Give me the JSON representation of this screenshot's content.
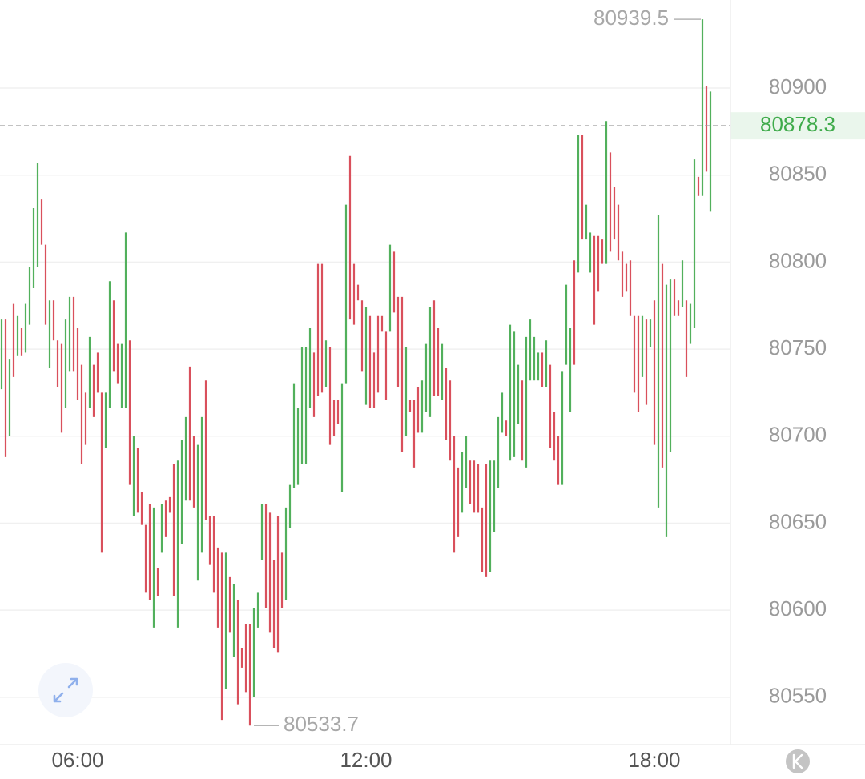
{
  "chart_data": {
    "type": "ohlc",
    "x": [
      265,
      270,
      275,
      280,
      285,
      290,
      295,
      300,
      305,
      310,
      315,
      320,
      325,
      330,
      335,
      340,
      345,
      350,
      355,
      360,
      365,
      370,
      375,
      380,
      385,
      390,
      395,
      400,
      405,
      410,
      415,
      420,
      425,
      430,
      435,
      440,
      445,
      450,
      455,
      460,
      465,
      470,
      475,
      480,
      485,
      490,
      495,
      500,
      505,
      510,
      515,
      520,
      525,
      530,
      535,
      540,
      545,
      550,
      555,
      560,
      565,
      570,
      575,
      580,
      585,
      590,
      595,
      600,
      605,
      610,
      615,
      620,
      625,
      630,
      635,
      640,
      645,
      650,
      655,
      660,
      665,
      670,
      675,
      680,
      685,
      690,
      695,
      700,
      705,
      710,
      715,
      720,
      725,
      730,
      735,
      740,
      745,
      750,
      755,
      760,
      765,
      770,
      775,
      780,
      785,
      790,
      795,
      800,
      805,
      810,
      815,
      820,
      825,
      830,
      835,
      840,
      845,
      850,
      855,
      860,
      865,
      870,
      875,
      880,
      885,
      890,
      895,
      900,
      905,
      910,
      915,
      920,
      925,
      930,
      935,
      940,
      945,
      950,
      955,
      960,
      965,
      970,
      975,
      980,
      985,
      990,
      995,
      1000,
      1005,
      1010,
      1015,
      1020,
      1025,
      1030,
      1035,
      1040,
      1045,
      1050,
      1055,
      1060,
      1065,
      1070,
      1075,
      1080,
      1085,
      1090,
      1095,
      1100,
      1105,
      1110,
      1115,
      1120,
      1125,
      1130,
      1135,
      1140,
      1145,
      1150
    ],
    "high": [
      80767,
      80767,
      80744,
      80776,
      80769,
      80762,
      80776,
      80797,
      80831,
      80857,
      80836,
      80810,
      80778,
      80778,
      80755,
      80753,
      80767,
      80780,
      80780,
      80762,
      80741,
      80725,
      80757,
      80741,
      80748,
      80725,
      80725,
      80789,
      80778,
      80753,
      80753,
      80817,
      80755,
      80700,
      80693,
      80668,
      80649,
      80661,
      80659,
      80624,
      80661,
      80663,
      80665,
      80684,
      80686,
      80698,
      80711,
      80740,
      80700,
      80695,
      80711,
      80732,
      80654,
      80654,
      80636,
      80633,
      80633,
      80619,
      80615,
      80606,
      80578,
      80592,
      80592,
      80601,
      80610,
      80661,
      80661,
      80656,
      80629,
      80654,
      80633,
      80659,
      80672,
      80730,
      80716,
      80751,
      80751,
      80762,
      80748,
      80799,
      80799,
      80755,
      80751,
      80721,
      80721,
      80730,
      80833,
      80861,
      80799,
      80787,
      80778,
      80774,
      80769,
      80748,
      80769,
      80769,
      80760,
      80810,
      80806,
      80780,
      80780,
      80751,
      80721,
      80721,
      80728,
      80732,
      80753,
      80774,
      80778,
      80762,
      80753,
      80739,
      80732,
      80700,
      80682,
      80691,
      80700,
      80686,
      80686,
      80684,
      80659,
      80684,
      80686,
      80686,
      80711,
      80725,
      80709,
      80764,
      80760,
      80741,
      80732,
      80757,
      80767,
      80757,
      80748,
      80748,
      80755,
      80741,
      80714,
      80700,
      80737,
      80787,
      80762,
      80801,
      80873,
      80873,
      80833,
      80817,
      80815,
      80815,
      80813,
      80881,
      80863,
      80843,
      80833,
      80806,
      80799,
      80801,
      80769,
      80769,
      80769,
      80767,
      80767,
      80778,
      80827,
      80799,
      80787,
      80790,
      80790,
      80778,
      80801,
      80778,
      80776,
      80859,
      80849,
      80939.5,
      80901,
      80898
    ],
    "low": [
      80727,
      80688,
      80700,
      80734,
      80746,
      80746,
      80748,
      80764,
      80785,
      80797,
      80810,
      80764,
      80739,
      80755,
      80728,
      80702,
      80716,
      80737,
      80737,
      80721,
      80684,
      80695,
      80716,
      80711,
      80725,
      80633,
      80693,
      80716,
      80737,
      80730,
      80716,
      80716,
      80672,
      80654,
      80656,
      80649,
      80610,
      80606,
      80590,
      80608,
      80633,
      80642,
      80656,
      80608,
      80590,
      80638,
      80663,
      80663,
      80659,
      80617,
      80633,
      80652,
      80626,
      80610,
      80590,
      80537,
      80555,
      80587,
      80573,
      80546,
      80567,
      80553,
      80533.7,
      80550,
      80590,
      80629,
      80601,
      80587,
      80578,
      80576,
      80601,
      80606,
      80647,
      80670,
      80672,
      80684,
      80684,
      80716,
      80711,
      80723,
      80725,
      80728,
      80695,
      80700,
      80707,
      80668,
      80730,
      80767,
      80764,
      80778,
      80737,
      80718,
      80716,
      80716,
      80725,
      80760,
      80721,
      80760,
      80771,
      80728,
      80691,
      80700,
      80714,
      80682,
      80702,
      80702,
      80714,
      80711,
      80723,
      80723,
      80721,
      80698,
      80686,
      80633,
      80642,
      80656,
      80670,
      80661,
      80656,
      80656,
      80622,
      80619,
      80622,
      80645,
      80670,
      80702,
      80700,
      80686,
      80688,
      80707,
      80686,
      80682,
      80732,
      80732,
      80732,
      80728,
      80728,
      80693,
      80686,
      80672,
      80672,
      80741,
      80714,
      80741,
      80794,
      80813,
      80813,
      80794,
      80764,
      80783,
      80799,
      80799,
      80806,
      80813,
      80801,
      80780,
      80783,
      80769,
      80725,
      80714,
      80734,
      80718,
      80751,
      80695,
      80659,
      80682,
      80642,
      80691,
      80769,
      80769,
      80774,
      80734,
      80753,
      80762,
      80838,
      80838,
      80852,
      80829
    ],
    "direction": [
      "up",
      "down",
      "up",
      "down",
      "up",
      "down",
      "up",
      "up",
      "up",
      "up",
      "down",
      "down",
      "up",
      "down",
      "down",
      "down",
      "up",
      "up",
      "down",
      "down",
      "down",
      "down",
      "up",
      "down",
      "down",
      "down",
      "up",
      "up",
      "down",
      "down",
      "up",
      "up",
      "down",
      "up",
      "down",
      "down",
      "down",
      "down",
      "up",
      "down",
      "up",
      "down",
      "down",
      "down",
      "up",
      "up",
      "up",
      "down",
      "down",
      "up",
      "up",
      "down",
      "down",
      "down",
      "down",
      "down",
      "up",
      "down",
      "up",
      "down",
      "down",
      "down",
      "down",
      "up",
      "up",
      "up",
      "down",
      "down",
      "down",
      "down",
      "down",
      "up",
      "up",
      "up",
      "up",
      "up",
      "up",
      "up",
      "down",
      "down",
      "down",
      "up",
      "down",
      "down",
      "down",
      "up",
      "up",
      "down",
      "down",
      "down",
      "down",
      "up",
      "down",
      "down",
      "down",
      "down",
      "down",
      "up",
      "down",
      "down",
      "down",
      "up",
      "down",
      "down",
      "down",
      "up",
      "up",
      "up",
      "down",
      "down",
      "up",
      "down",
      "down",
      "down",
      "down",
      "up",
      "up",
      "down",
      "down",
      "down",
      "down",
      "down",
      "up",
      "up",
      "up",
      "up",
      "down",
      "up",
      "up",
      "up",
      "down",
      "up",
      "up",
      "up",
      "up",
      "down",
      "up",
      "down",
      "down",
      "down",
      "up",
      "up",
      "up",
      "down",
      "up",
      "down",
      "up",
      "up",
      "down",
      "down",
      "down",
      "up",
      "down",
      "down",
      "down",
      "down",
      "down",
      "down",
      "down",
      "down",
      "up",
      "down",
      "up",
      "down",
      "up",
      "down",
      "up",
      "up",
      "down",
      "down",
      "up",
      "down",
      "up",
      "up",
      "down",
      "up",
      "down",
      "up"
    ],
    "colors": {
      "up": "#52b05c",
      "down": "#d9505c"
    },
    "xlim": [
      263,
      1175
    ],
    "xticks": [
      {
        "value": 360,
        "label": "06:00"
      },
      {
        "value": 720,
        "label": "12:00"
      },
      {
        "value": 1080,
        "label": "18:00"
      }
    ],
    "ylim": [
      80522.8,
      80950.6
    ],
    "yticks": [
      80550,
      80600,
      80650,
      80700,
      80750,
      80800,
      80850,
      80900
    ],
    "grid": true,
    "last_price": 80878.3,
    "last_price_color": "#3fab4b",
    "high_marker": 80939.5,
    "low_marker": 80533.7
  }
}
